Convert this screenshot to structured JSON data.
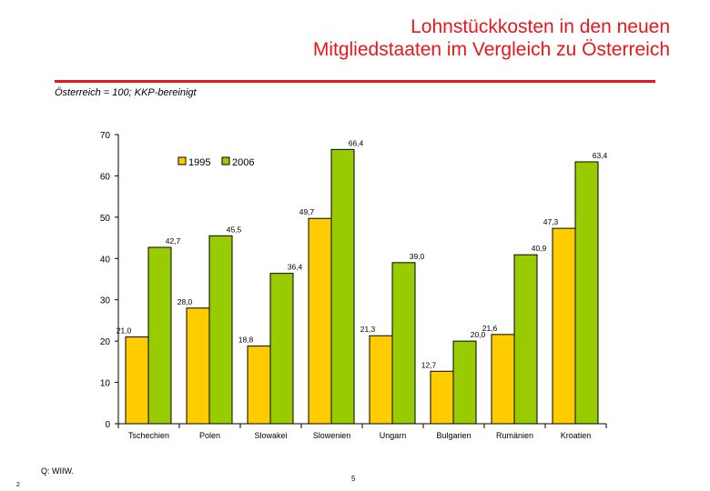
{
  "header": {
    "title_line1": "Lohnstückkosten in den neuen",
    "title_line2": "Mitgliedstaaten im Vergleich zu Österreich"
  },
  "subtitle": "Österreich = 100; KKP-bereinigt",
  "footer": {
    "source": "Q: WIIW.",
    "page_number": "5",
    "slide_number": "2"
  },
  "colors": {
    "title": "#e8171b",
    "series_1995": "#ffcc00",
    "series_2006": "#99cc00"
  },
  "chart_data": {
    "type": "bar",
    "title": "",
    "xlabel": "",
    "ylabel": "",
    "ylim": [
      0,
      70
    ],
    "yticks": [
      0,
      10,
      20,
      30,
      40,
      50,
      60,
      70
    ],
    "legend_position": "top-left",
    "categories": [
      "Tschechien",
      "Polen",
      "Slowakei",
      "Slowenien",
      "Ungarn",
      "Bulgarien",
      "Rumänien",
      "Kroatien"
    ],
    "series": [
      {
        "name": "1995",
        "color": "#ffcc00",
        "values": [
          21.0,
          28.0,
          18.8,
          49.7,
          21.3,
          12.7,
          21.6,
          47.3
        ]
      },
      {
        "name": "2006",
        "color": "#99cc00",
        "values": [
          42.7,
          45.5,
          36.4,
          66.4,
          39.0,
          20.0,
          40.9,
          63.4
        ]
      }
    ],
    "value_labels": [
      [
        "21,0",
        "28,0",
        "18,8",
        "49,7",
        "21,3",
        "12,7",
        "21,6",
        "47,3"
      ],
      [
        "42,7",
        "45,5",
        "36,4",
        "66,4",
        "39,0",
        "20,0",
        "40,9",
        "63,4"
      ]
    ]
  }
}
